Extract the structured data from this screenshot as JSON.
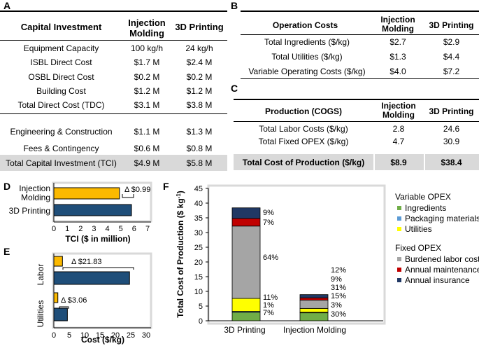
{
  "panel_labels": {
    "a": "A",
    "b": "B",
    "c": "C",
    "d": "D",
    "e": "E",
    "f": "F"
  },
  "table_a": {
    "headers": [
      "Capital Investment",
      "Injection Molding",
      "3D Printing"
    ],
    "rows": [
      [
        "Equipment Capacity",
        "100 kg/h",
        "24 kg/h"
      ],
      [
        "ISBL Direct Cost",
        "$1.7 M",
        "$2.4 M"
      ],
      [
        "OSBL Direct Cost",
        "$0.2 M",
        "$0.2 M"
      ],
      [
        "Building Cost",
        "$1.2 M",
        "$1.2 M"
      ],
      [
        "Total Direct Cost (TDC)",
        "$3.1 M",
        "$3.8 M"
      ],
      [
        "Engineering & Construction",
        "$1.1 M",
        "$1.3 M"
      ],
      [
        "Fees & Contingency",
        "$0.6 M",
        "$0.8 M"
      ],
      [
        "Total Capital Investment (TCI)",
        "$4.9 M",
        "$5.8 M"
      ]
    ]
  },
  "table_b": {
    "headers": [
      "Operation Costs",
      "Injection Molding",
      "3D Printing"
    ],
    "rows": [
      [
        "Total Ingredients ($/kg)",
        "$2.7",
        "$2.9"
      ],
      [
        "Total Utilities ($/kg)",
        "$1.3",
        "$4.4"
      ],
      [
        "Variable Operating Costs ($/kg)",
        "$4.0",
        "$7.2"
      ]
    ]
  },
  "table_c": {
    "headers": [
      "Production (COGS)",
      "Injection Molding",
      "3D Printing"
    ],
    "rows": [
      [
        "Total Labor Costs ($/kg)",
        "2.8",
        "24.6"
      ],
      [
        "Total Fixed OPEX ($/kg)",
        "4.7",
        "30.9"
      ],
      [
        "Total Cost of Production ($/kg)",
        "$8.9",
        "$38.4"
      ]
    ]
  },
  "colors": {
    "injection": "#fbb900",
    "printing": "#1f4e79",
    "ingredients": "#70ad47",
    "packaging": "#5b9bd5",
    "utilities": "#ffff00",
    "labor": "#a5a5a5",
    "maintenance": "#c00000",
    "insurance": "#203864"
  },
  "chart_data": [
    {
      "type": "bar",
      "orientation": "horizontal",
      "categories": [
        "Injection Molding",
        "3D Printing"
      ],
      "values": [
        4.9,
        5.8
      ],
      "xlabel": "TCI ($ in million)",
      "xlim": [
        0,
        7
      ],
      "xticks": [
        "0",
        "1",
        "2",
        "3",
        "4",
        "5",
        "6",
        "7"
      ],
      "annotation": "Δ $0.99"
    },
    {
      "type": "bar",
      "orientation": "horizontal",
      "categories": [
        "Labor",
        "Utilities"
      ],
      "series": [
        {
          "name": "Injection Molding",
          "values": [
            2.8,
            1.3
          ]
        },
        {
          "name": "3D Printing",
          "values": [
            24.6,
            4.4
          ]
        }
      ],
      "xlabel": "Cost ($/kg)",
      "xlim": [
        0,
        30
      ],
      "xticks": [
        "0",
        "5",
        "10",
        "15",
        "20",
        "25",
        "30"
      ],
      "annotations": [
        "Δ $21.83",
        "Δ $3.06"
      ]
    },
    {
      "type": "bar",
      "stacked": true,
      "categories": [
        "3D Printing",
        "Injection Molding"
      ],
      "ylabel": "Total Cost of Production ($ kg",
      "ylabel_sup": "-1",
      "ylabel_close": ")",
      "ylim": [
        0,
        45
      ],
      "yticks": [
        "0",
        "5",
        "10",
        "15",
        "20",
        "25",
        "30",
        "35",
        "40",
        "45"
      ],
      "series": [
        {
          "name": "Ingredients",
          "values": [
            2.9,
            2.7
          ]
        },
        {
          "name": "Packaging materials",
          "values": [
            0.3,
            0.2
          ]
        },
        {
          "name": "Utilities",
          "values": [
            4.4,
            1.3
          ]
        },
        {
          "name": "Burdened labor cost",
          "values": [
            24.6,
            2.8
          ]
        },
        {
          "name": "Annual maintenance",
          "values": [
            2.6,
            0.8
          ]
        },
        {
          "name": "Annual insurance",
          "values": [
            3.6,
            1.1
          ]
        }
      ],
      "percent_labels": [
        [
          "7%",
          "1%",
          "11%",
          "64%",
          "7%",
          "9%"
        ],
        [
          "30%",
          "3%",
          "15%",
          "31%",
          "9%",
          "12%"
        ]
      ],
      "legend": {
        "position": "right",
        "groups": [
          {
            "title": "Variable OPEX",
            "items": [
              "Ingredients",
              "Packaging materials",
              "Utilities"
            ]
          },
          {
            "title": "Fixed OPEX",
            "items": [
              "Burdened labor cost",
              "Annual maintenance",
              "Annual insurance"
            ]
          }
        ]
      }
    }
  ]
}
